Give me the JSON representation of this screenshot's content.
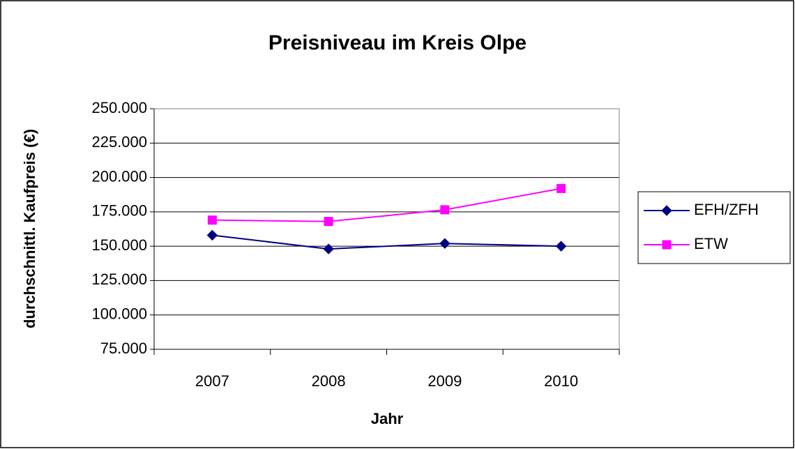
{
  "chart_data": {
    "type": "line",
    "title": "Preisniveau im Kreis Olpe",
    "x_label": "Jahr",
    "y_label": "durchschnittl. Kaufpreis (€)",
    "categories": [
      "2007",
      "2008",
      "2009",
      "2010"
    ],
    "series": [
      {
        "name": "EFH/ZFH",
        "color": "#000080",
        "marker": "diamond",
        "values": [
          158000,
          148000,
          152000,
          150000
        ]
      },
      {
        "name": "ETW",
        "color": "#ff00ff",
        "marker": "square",
        "values": [
          169000,
          168000,
          176500,
          192000
        ]
      }
    ],
    "ylim": [
      75000,
      250000
    ],
    "yticks": [
      {
        "value": 75000,
        "label": "75.000"
      },
      {
        "value": 100000,
        "label": "100.000"
      },
      {
        "value": 125000,
        "label": "125.000"
      },
      {
        "value": 150000,
        "label": "150.000"
      },
      {
        "value": 175000,
        "label": "175.000"
      },
      {
        "value": 200000,
        "label": "200.000"
      },
      {
        "value": 225000,
        "label": "225.000"
      },
      {
        "value": 250000,
        "label": "250.000"
      }
    ],
    "grid": true,
    "legend": "right"
  }
}
